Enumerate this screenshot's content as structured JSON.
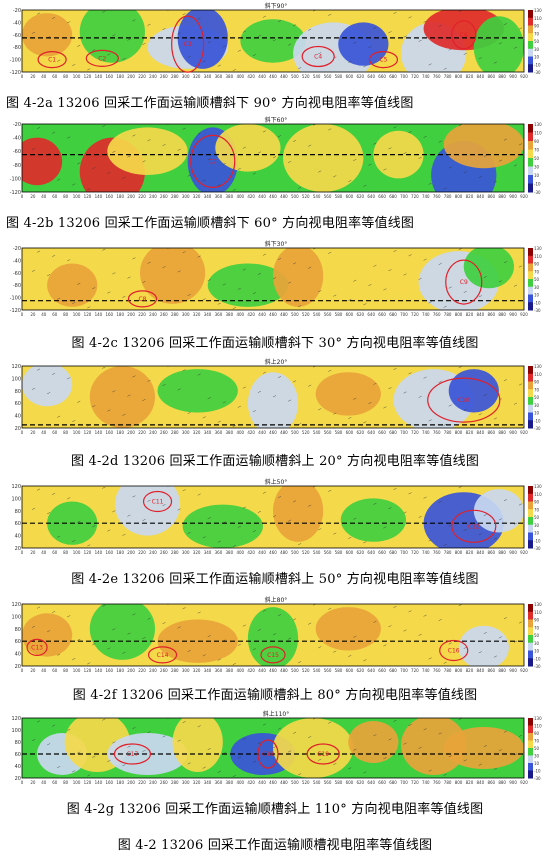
{
  "figure_title": "图 4-2 13206 回采工作面运输顺槽视电阻率等值线图",
  "panels": [
    {
      "id": "a",
      "plot_title": "斜下90°",
      "caption": "图 4-2a 13206 回采工作面运输顺槽斜下 90° 方向视电阻率等值线图",
      "yticks": [
        "-20",
        "-40",
        "-60",
        "-80",
        "-100",
        "-120"
      ],
      "circle_labels": [
        "C1",
        "C2",
        "C3",
        "C4",
        "C5",
        "C6"
      ]
    },
    {
      "id": "b",
      "plot_title": "斜下60°",
      "caption": "图 4-2b 13206 回采工作面运输顺槽斜下 60° 方向视电阻率等值线图",
      "yticks": [
        "-20",
        "-40",
        "-60",
        "-80",
        "-100",
        "-120"
      ],
      "circle_labels": [
        "C7"
      ]
    },
    {
      "id": "c",
      "plot_title": "斜下30°",
      "caption": "图 4-2c 13206 回采工作面运输顺槽斜下 30° 方向视电阻率等值线图",
      "yticks": [
        "-20",
        "-40",
        "-60",
        "-80",
        "-100",
        "-120"
      ],
      "circle_labels": [
        "C8",
        "C9"
      ]
    },
    {
      "id": "d",
      "plot_title": "斜上20°",
      "caption": "图 4-2d 13206 回采工作面运输顺槽斜上 20° 方向视电阻率等值线图",
      "yticks": [
        "120",
        "100",
        "80",
        "60",
        "40",
        "20"
      ],
      "circle_labels": [
        "C10"
      ]
    },
    {
      "id": "e",
      "plot_title": "斜上50°",
      "caption": "图 4-2e 13206 回采工作面运输顺槽斜上 50° 方向视电阻率等值线图",
      "yticks": [
        "120",
        "100",
        "80",
        "60",
        "40",
        "20"
      ],
      "circle_labels": [
        "C11",
        "C12"
      ]
    },
    {
      "id": "f",
      "plot_title": "斜上80°",
      "caption": "图 4-2f 13206 回采工作面运输顺槽斜上 80° 方向视电阻率等值线图",
      "yticks": [
        "120",
        "100",
        "80",
        "60",
        "40",
        "20"
      ],
      "circle_labels": [
        "C13",
        "C14",
        "C15",
        "C16"
      ]
    },
    {
      "id": "g",
      "plot_title": "斜上110°",
      "caption": "图 4-2g 13206 回采工作面运输顺槽斜上 110° 方向视电阻率等值线图",
      "yticks": [
        "120",
        "100",
        "80",
        "60",
        "40",
        "20"
      ],
      "circle_labels": [
        "C17",
        "C18",
        "C19"
      ]
    }
  ],
  "xticks": [
    "0",
    "20",
    "40",
    "60",
    "80",
    "100",
    "120",
    "140",
    "160",
    "180",
    "200",
    "220",
    "240",
    "260",
    "280",
    "300",
    "320",
    "340",
    "360",
    "380",
    "400",
    "420",
    "440",
    "460",
    "480",
    "500",
    "520",
    "540",
    "560",
    "580",
    "600",
    "620",
    "640",
    "660",
    "680",
    "700",
    "720",
    "740",
    "760",
    "780",
    "800",
    "820",
    "840",
    "860",
    "880",
    "900",
    "920"
  ],
  "colorbar_labels": [
    "130",
    "110",
    "90",
    "70",
    "50",
    "30",
    "10",
    "-10",
    "-30"
  ],
  "colors": {
    "yellow": "#f4d94a",
    "orange": "#e8a43a",
    "green": "#3fcf3f",
    "blue": "#3a55d8",
    "lightblue": "#c9d8f0",
    "red": "#e02b2b",
    "white": "#ffffff",
    "circle": "#e0202a"
  }
}
